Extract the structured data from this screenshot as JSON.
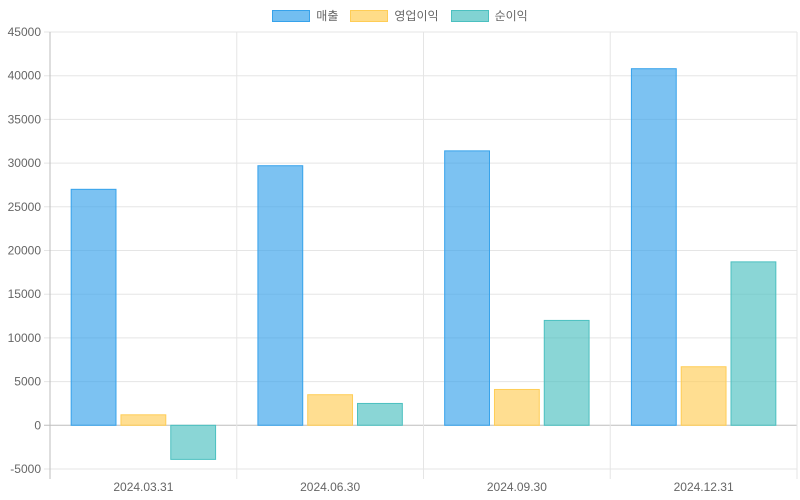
{
  "chart_data": {
    "type": "bar",
    "categories": [
      "2024.03.31",
      "2024.06.30",
      "2024.09.30",
      "2024.12.31"
    ],
    "series": [
      {
        "name": "매출",
        "values": [
          27000,
          29700,
          31400,
          40800
        ],
        "color": "#36A2EB"
      },
      {
        "name": "영업이익",
        "values": [
          1200,
          3500,
          4100,
          6700
        ],
        "color": "#FFCD56"
      },
      {
        "name": "순이익",
        "values": [
          -3900,
          2500,
          12000,
          18700
        ],
        "color": "#4BC0C0"
      }
    ],
    "ylim": [
      -5000,
      45000
    ],
    "yticks": [
      -5000,
      0,
      5000,
      10000,
      15000,
      20000,
      25000,
      30000,
      35000,
      40000,
      45000
    ],
    "grid": true,
    "legend_position": "top-center",
    "title": "",
    "xlabel": "",
    "ylabel": ""
  }
}
